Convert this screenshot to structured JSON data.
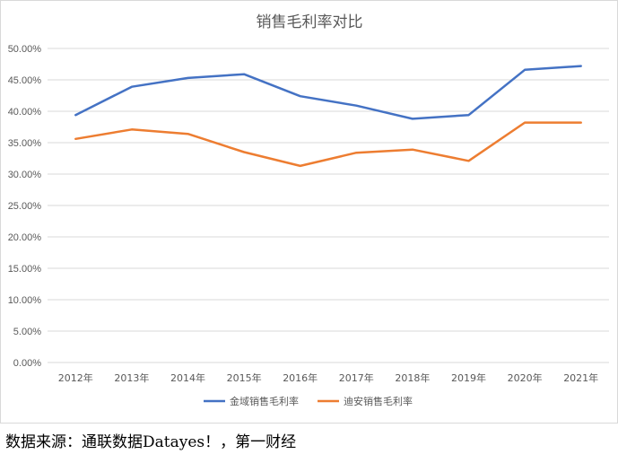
{
  "chart_data": {
    "type": "line",
    "title": "销售毛利率对比",
    "categories": [
      "2012年",
      "2013年",
      "2014年",
      "2015年",
      "2016年",
      "2017年",
      "2018年",
      "2019年",
      "2020年",
      "2021年"
    ],
    "y_ticks": [
      "0.00%",
      "5.00%",
      "10.00%",
      "15.00%",
      "20.00%",
      "25.00%",
      "30.00%",
      "35.00%",
      "40.00%",
      "45.00%",
      "50.00%"
    ],
    "ylim": [
      0,
      50
    ],
    "grid": true,
    "legend_position": "bottom",
    "series": [
      {
        "name": "金域销售毛利率",
        "color": "#4472c4",
        "values": [
          39.4,
          43.9,
          45.3,
          45.9,
          42.4,
          40.9,
          38.8,
          39.4,
          46.6,
          47.2
        ]
      },
      {
        "name": "迪安销售毛利率",
        "color": "#ed7d31",
        "values": [
          35.6,
          37.1,
          36.4,
          33.5,
          31.3,
          33.4,
          33.9,
          32.1,
          38.2,
          38.2
        ]
      }
    ]
  },
  "footer": {
    "source": "数据来源：通联数据Datayes！，第一财经"
  }
}
